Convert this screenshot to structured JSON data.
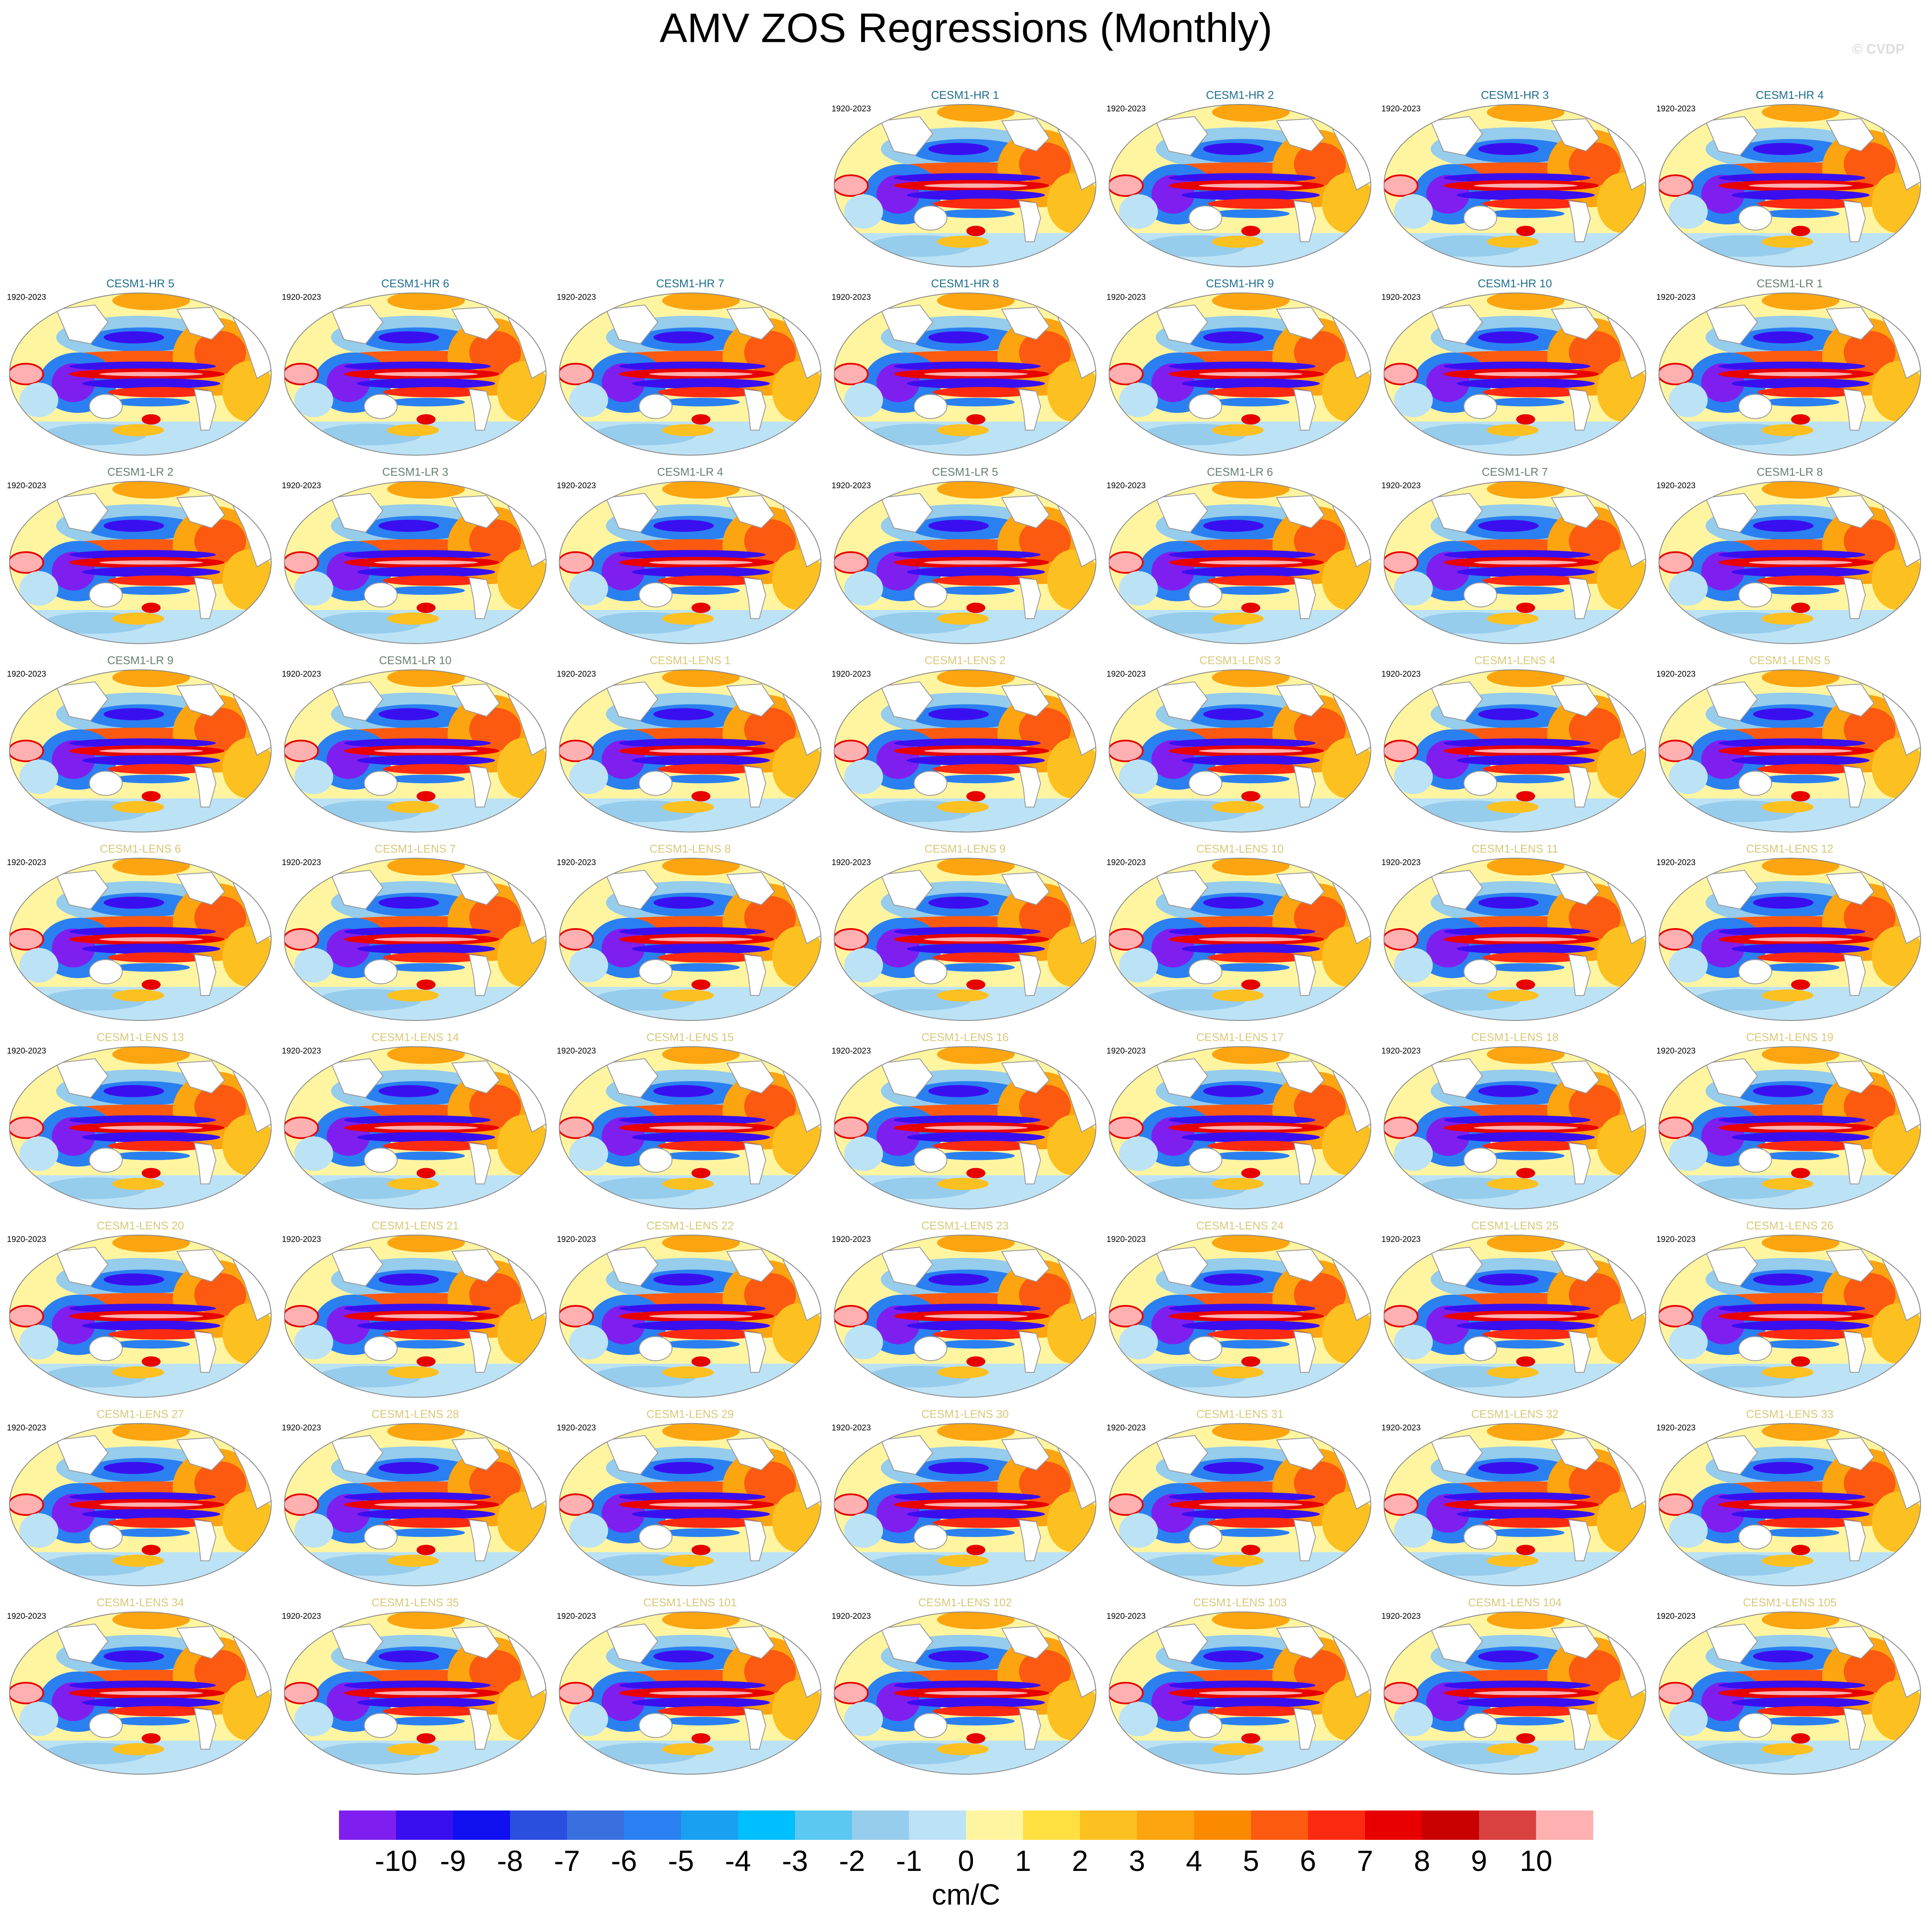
{
  "title": "AMV ZOS Regressions (Monthly)",
  "watermark": "© CVDP",
  "panels": [
    {
      "title": "CESM1-HR 1",
      "period": "1920-2023",
      "title_color": "#1f6e8c"
    },
    {
      "title": "CESM1-HR 2",
      "period": "1920-2023",
      "title_color": "#1f6e8c"
    },
    {
      "title": "CESM1-HR 3",
      "period": "1920-2023",
      "title_color": "#1f6e8c"
    },
    {
      "title": "CESM1-HR 4",
      "period": "1920-2023",
      "title_color": "#1f6e8c"
    },
    {
      "title": "CESM1-HR 5",
      "period": "1920-2023",
      "title_color": "#1f6e8c"
    },
    {
      "title": "CESM1-HR 6",
      "period": "1920-2023",
      "title_color": "#1f6e8c"
    },
    {
      "title": "CESM1-HR 7",
      "period": "1920-2023",
      "title_color": "#1f6e8c"
    },
    {
      "title": "CESM1-HR 8",
      "period": "1920-2023",
      "title_color": "#1f6e8c"
    },
    {
      "title": "CESM1-HR 9",
      "period": "1920-2023",
      "title_color": "#1f6e8c"
    },
    {
      "title": "CESM1-HR 10",
      "period": "1920-2023",
      "title_color": "#1f6e8c"
    },
    {
      "title": "CESM1-LR 1",
      "period": "1920-2023",
      "title_color": "#66806e"
    },
    {
      "title": "CESM1-LR 2",
      "period": "1920-2023",
      "title_color": "#66806e"
    },
    {
      "title": "CESM1-LR 3",
      "period": "1920-2023",
      "title_color": "#66806e"
    },
    {
      "title": "CESM1-LR 4",
      "period": "1920-2023",
      "title_color": "#66806e"
    },
    {
      "title": "CESM1-LR 5",
      "period": "1920-2023",
      "title_color": "#66806e"
    },
    {
      "title": "CESM1-LR 6",
      "period": "1920-2023",
      "title_color": "#66806e"
    },
    {
      "title": "CESM1-LR 7",
      "period": "1920-2023",
      "title_color": "#66806e"
    },
    {
      "title": "CESM1-LR 8",
      "period": "1920-2023",
      "title_color": "#66806e"
    },
    {
      "title": "CESM1-LR 9",
      "period": "1920-2023",
      "title_color": "#66806e"
    },
    {
      "title": "CESM1-LR 10",
      "period": "1920-2023",
      "title_color": "#66806e"
    },
    {
      "title": "CESM1-LENS 1",
      "period": "1920-2023",
      "title_color": "#d8c878"
    },
    {
      "title": "CESM1-LENS 2",
      "period": "1920-2023",
      "title_color": "#d8c878"
    },
    {
      "title": "CESM1-LENS 3",
      "period": "1920-2023",
      "title_color": "#d8c878"
    },
    {
      "title": "CESM1-LENS 4",
      "period": "1920-2023",
      "title_color": "#d8c878"
    },
    {
      "title": "CESM1-LENS 5",
      "period": "1920-2023",
      "title_color": "#d8c878"
    },
    {
      "title": "CESM1-LENS 6",
      "period": "1920-2023",
      "title_color": "#d8c878"
    },
    {
      "title": "CESM1-LENS 7",
      "period": "1920-2023",
      "title_color": "#d8c878"
    },
    {
      "title": "CESM1-LENS 8",
      "period": "1920-2023",
      "title_color": "#d8c878"
    },
    {
      "title": "CESM1-LENS 9",
      "period": "1920-2023",
      "title_color": "#d8c878"
    },
    {
      "title": "CESM1-LENS 10",
      "period": "1920-2023",
      "title_color": "#d8c878"
    },
    {
      "title": "CESM1-LENS 11",
      "period": "1920-2023",
      "title_color": "#d8c878"
    },
    {
      "title": "CESM1-LENS 12",
      "period": "1920-2023",
      "title_color": "#d8c878"
    },
    {
      "title": "CESM1-LENS 13",
      "period": "1920-2023",
      "title_color": "#d8c878"
    },
    {
      "title": "CESM1-LENS 14",
      "period": "1920-2023",
      "title_color": "#d8c878"
    },
    {
      "title": "CESM1-LENS 15",
      "period": "1920-2023",
      "title_color": "#d8c878"
    },
    {
      "title": "CESM1-LENS 16",
      "period": "1920-2023",
      "title_color": "#d8c878"
    },
    {
      "title": "CESM1-LENS 17",
      "period": "1920-2023",
      "title_color": "#d8c878"
    },
    {
      "title": "CESM1-LENS 18",
      "period": "1920-2023",
      "title_color": "#d8c878"
    },
    {
      "title": "CESM1-LENS 19",
      "period": "1920-2023",
      "title_color": "#d8c878"
    },
    {
      "title": "CESM1-LENS 20",
      "period": "1920-2023",
      "title_color": "#d8c878"
    },
    {
      "title": "CESM1-LENS 21",
      "period": "1920-2023",
      "title_color": "#d8c878"
    },
    {
      "title": "CESM1-LENS 22",
      "period": "1920-2023",
      "title_color": "#d8c878"
    },
    {
      "title": "CESM1-LENS 23",
      "period": "1920-2023",
      "title_color": "#d8c878"
    },
    {
      "title": "CESM1-LENS 24",
      "period": "1920-2023",
      "title_color": "#d8c878"
    },
    {
      "title": "CESM1-LENS 25",
      "period": "1920-2023",
      "title_color": "#d8c878"
    },
    {
      "title": "CESM1-LENS 26",
      "period": "1920-2023",
      "title_color": "#d8c878"
    },
    {
      "title": "CESM1-LENS 27",
      "period": "1920-2023",
      "title_color": "#d8c878"
    },
    {
      "title": "CESM1-LENS 28",
      "period": "1920-2023",
      "title_color": "#d8c878"
    },
    {
      "title": "CESM1-LENS 29",
      "period": "1920-2023",
      "title_color": "#d8c878"
    },
    {
      "title": "CESM1-LENS 30",
      "period": "1920-2023",
      "title_color": "#d8c878"
    },
    {
      "title": "CESM1-LENS 31",
      "period": "1920-2023",
      "title_color": "#d8c878"
    },
    {
      "title": "CESM1-LENS 32",
      "period": "1920-2023",
      "title_color": "#d8c878"
    },
    {
      "title": "CESM1-LENS 33",
      "period": "1920-2023",
      "title_color": "#d8c878"
    },
    {
      "title": "CESM1-LENS 34",
      "period": "1920-2023",
      "title_color": "#d8c878"
    },
    {
      "title": "CESM1-LENS 35",
      "period": "1920-2023",
      "title_color": "#d8c878"
    },
    {
      "title": "CESM1-LENS 101",
      "period": "1920-2023",
      "title_color": "#d8c878"
    },
    {
      "title": "CESM1-LENS 102",
      "period": "1920-2023",
      "title_color": "#d8c878"
    },
    {
      "title": "CESM1-LENS 103",
      "period": "1920-2023",
      "title_color": "#d8c878"
    },
    {
      "title": "CESM1-LENS 104",
      "period": "1920-2023",
      "title_color": "#d8c878"
    },
    {
      "title": "CESM1-LENS 105",
      "period": "1920-2023",
      "title_color": "#d8c878"
    }
  ],
  "colorbar": {
    "colors": [
      "#7f1fef",
      "#3a0fef",
      "#1010f0",
      "#2a4ee0",
      "#3a6fe0",
      "#2a80f0",
      "#1aa0f0",
      "#00bfff",
      "#5ac8f0",
      "#96ccec",
      "#bce2f5",
      "#fff5a0",
      "#ffe040",
      "#fcc020",
      "#fca510",
      "#fc8a00",
      "#fc5a10",
      "#fc2a10",
      "#e80000",
      "#c80000",
      "#d94040",
      "#ffb0b0"
    ],
    "ticks": [
      -10,
      -9,
      -8,
      -7,
      -6,
      -5,
      -4,
      -3,
      -2,
      -1,
      0,
      1,
      2,
      3,
      4,
      5,
      6,
      7,
      8,
      9,
      10
    ],
    "label": "cm/C"
  }
}
